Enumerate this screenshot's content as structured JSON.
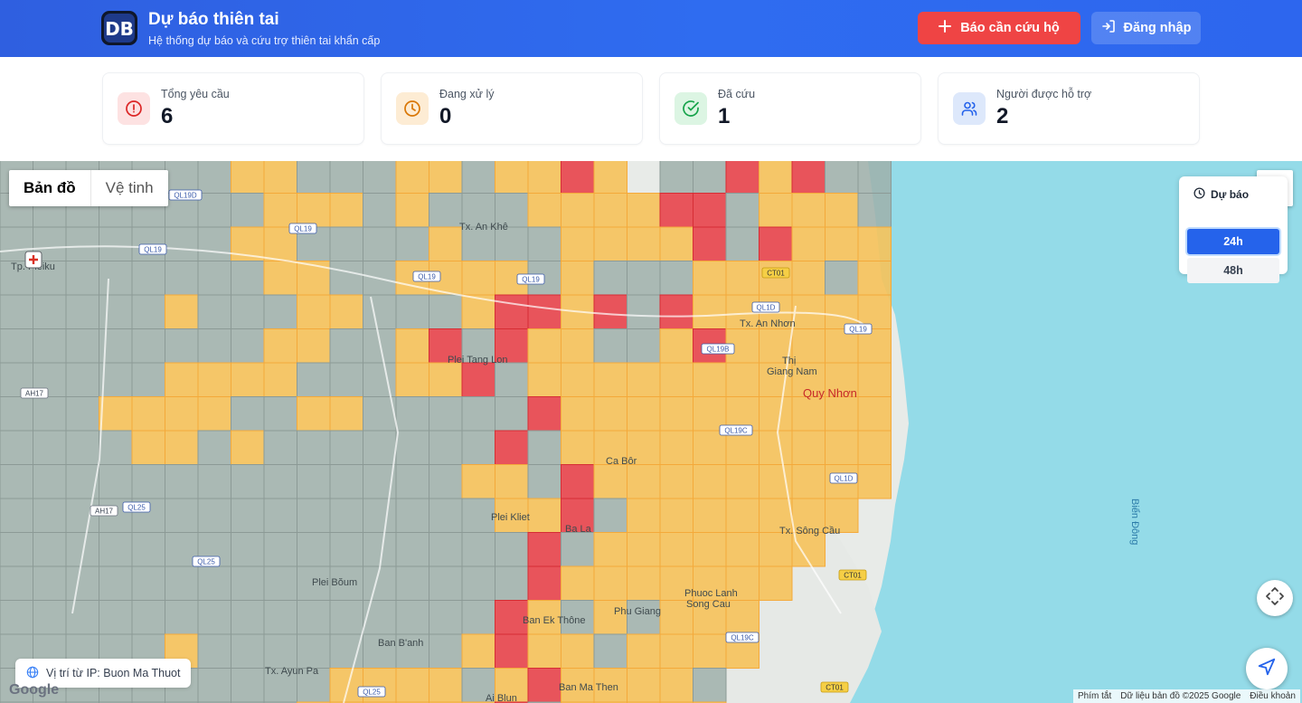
{
  "header": {
    "title": "Dự báo thiên tai",
    "subtitle": "Hệ thống dự báo và cứu trợ thiên tai khẩn cấp",
    "rescue_button": "Báo cần cứu hộ",
    "login_button": "Đăng nhập",
    "logo_letters": "DB",
    "colors": {
      "background": "#2f64ea",
      "rescue": "#ef4444"
    }
  },
  "stats": [
    {
      "label": "Tổng yêu cầu",
      "value": "6",
      "icon": "alert-circle-icon",
      "color": "#dc2626",
      "bg": "#fde2e2"
    },
    {
      "label": "Đang xử lý",
      "value": "0",
      "icon": "clock-icon",
      "color": "#d97706",
      "bg": "#fdecd4"
    },
    {
      "label": "Đã cứu",
      "value": "1",
      "icon": "check-circle-icon",
      "color": "#16a34a",
      "bg": "#dcf5e3"
    },
    {
      "label": "Người được hỗ trợ",
      "value": "2",
      "icon": "users-icon",
      "color": "#2563eb",
      "bg": "#dde8fb"
    }
  ],
  "map": {
    "type_controls": {
      "map": "Bản đồ",
      "satellite": "Vệ tinh",
      "active": "map"
    },
    "forecast": {
      "title": "Dự báo",
      "options": [
        "24h",
        "48h"
      ],
      "selected": "24h"
    },
    "ip_location": "Vị trí từ IP: Buon Ma Thuot",
    "google": "Google",
    "attribution": {
      "shortcuts": "Phím tắt",
      "data": "Dữ liệu bản đồ ©2025 Google",
      "terms": "Điều khoản"
    },
    "risk_colors": {
      "low": "#9fb0aa",
      "medium": "#f6c25a",
      "high": "#e8444b",
      "sea": "#94dbe8"
    },
    "place_labels": [
      "Tp. Pleiku",
      "Tx. An Khê",
      "Tx. An Nhơn",
      "Plei Tang Lon",
      "Thị",
      "Giang Nam",
      "Quy Nhơn",
      "Ca Bôr",
      "Plei Kliet",
      "Ba La",
      "Tx. Sông Cầu",
      "Plei Bŏum",
      "Phuoc Lanh",
      "Song Cau",
      "Phu Giang",
      "Ban Ek Thône",
      "Ban B'anh",
      "Tx. Ayun Pa",
      "Ban Ma Then",
      "Ai Blun",
      "Biển Đông"
    ],
    "road_labels": [
      "QL19D",
      "QL19",
      "QL19",
      "QL19",
      "QL19",
      "QL19B",
      "CT01",
      "QL1D",
      "QL19",
      "QL19C",
      "QL1D",
      "AH17",
      "AH17",
      "QL25",
      "QL25",
      "CT01",
      "QL19C",
      "CT01",
      "QL25"
    ]
  }
}
